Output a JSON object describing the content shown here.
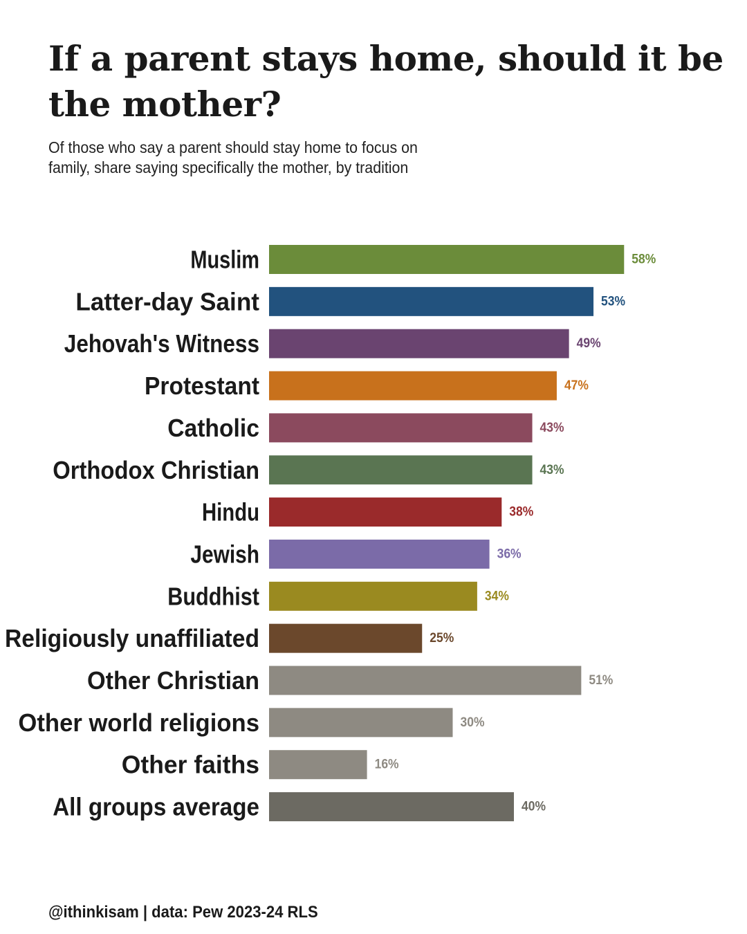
{
  "title": "If a parent stays home, should it be the mother?",
  "subtitle": "Of those who say a parent should stay home to focus on family, share saying specifically the mother, by tradition",
  "footer": "@ithinkisam | data: Pew 2023-24 RLS",
  "chart_data": {
    "type": "bar",
    "orientation": "horizontal",
    "categories": [
      "Muslim",
      "Latter-day Saint",
      "Jehovah's Witness",
      "Protestant",
      "Catholic",
      "Orthodox Christian",
      "Hindu",
      "Jewish",
      "Buddhist",
      "Religiously unaffiliated",
      "Other Christian",
      "Other world religions",
      "Other faiths",
      "All groups average"
    ],
    "values": [
      58,
      53,
      49,
      47,
      43,
      43,
      38,
      36,
      34,
      25,
      51,
      30,
      16,
      40
    ],
    "value_labels": [
      "58%",
      "53%",
      "49%",
      "47%",
      "43%",
      "43%",
      "38%",
      "36%",
      "34%",
      "25%",
      "51%",
      "30%",
      "16%",
      "40%"
    ],
    "colors": [
      "#6b8c3a",
      "#22527e",
      "#6a4470",
      "#c8711c",
      "#8b4a5e",
      "#5a7552",
      "#9a2a2b",
      "#7b6ba8",
      "#9a8a20",
      "#6b482c",
      "#8e8a82",
      "#8e8a82",
      "#8e8a82",
      "#6c6a62"
    ],
    "unit": "%",
    "xlim": [
      0,
      100
    ],
    "grid": false,
    "legend": "none"
  }
}
